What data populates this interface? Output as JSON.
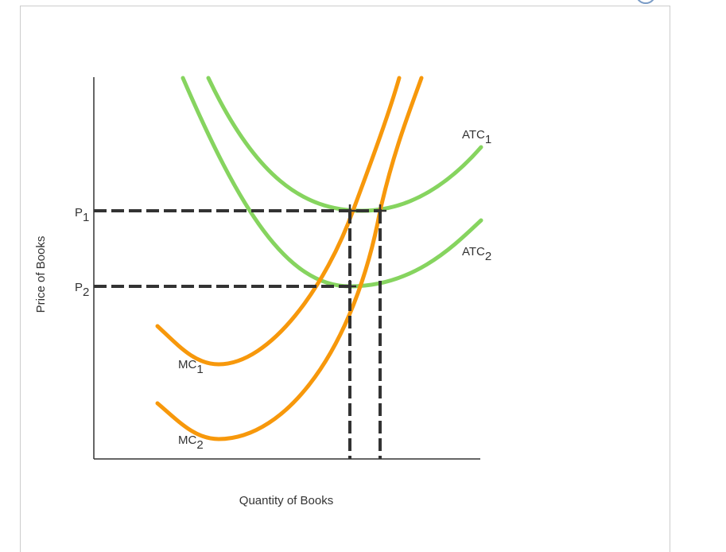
{
  "diagram": {
    "y_axis_label": "Price of Books",
    "x_axis_label": "Quantity of Books",
    "price_labels": [
      {
        "text": "P",
        "sub": "1"
      },
      {
        "text": "P",
        "sub": "2"
      }
    ],
    "curves": [
      {
        "text": "ATC",
        "sub": "1"
      },
      {
        "text": "ATC",
        "sub": "2"
      },
      {
        "text": "MC",
        "sub": "1"
      },
      {
        "text": "MC",
        "sub": "2"
      }
    ]
  }
}
